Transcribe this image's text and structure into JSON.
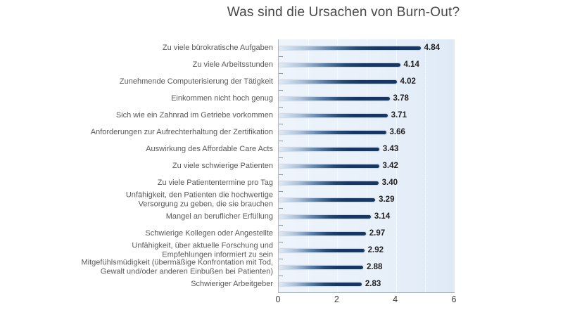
{
  "chart_data": {
    "type": "bar",
    "orientation": "horizontal",
    "title": "Was sind die Ursachen von Burn-Out?",
    "categories": [
      "Zu viele bürokratische Aufgaben",
      "Zu viele Arbeitsstunden",
      "Zunehmende Computerisierung der Tätigkeit",
      "Einkommen nicht hoch genug",
      "Sich wie ein Zahnrad im Getriebe vorkommen",
      "Anforderungen zur Aufrechterhaltung der Zertifikation",
      "Auswirkung des Affordable Care Acts",
      "Zu viele schwierige Patienten",
      "Zu viele Patiententermine pro Tag",
      "Unfähigkeit, den Patienten die hochwertige\nVersorgung zu geben, die sie brauchen",
      "Mangel an beruflicher Erfüllung",
      "Schwierige Kollegen oder Angestellte",
      "Unfähigkeit, über aktuelle Forschung und\nEmpfehlungen informiert zu sein",
      "Mitgefühlsmüdigkeit (übermäßige Konfrontation mit Tod,\nGewalt und/oder anderen Einbußen bei Patienten)",
      "Schwieriger Arbeitgeber"
    ],
    "values": [
      4.84,
      4.14,
      4.02,
      3.78,
      3.71,
      3.66,
      3.43,
      3.42,
      3.4,
      3.29,
      3.14,
      2.97,
      2.92,
      2.88,
      2.83
    ],
    "value_labels": [
      "4.84",
      "4.14",
      "4.02",
      "3.78",
      "3.71",
      "3.66",
      "3.43",
      "3.42",
      "3.40",
      "3.29",
      "3.14",
      "2.97",
      "2.92",
      "2.88",
      "2.83"
    ],
    "xlabel": "",
    "ylabel": "",
    "xlim": [
      0,
      6
    ],
    "xticks": [
      "0",
      "2",
      "4",
      "6"
    ],
    "grid": "vertical dotted gridlines at every 1 unit",
    "legend": "none",
    "colors": {
      "bar_dark": "#17375e",
      "bar_light": "#e3ecf7",
      "plot_background": "#e8f0f9",
      "title_text": "#474747",
      "category_text": "#595959",
      "value_text": "#1f1f1f",
      "axis_line": "#9aa0a8"
    }
  }
}
